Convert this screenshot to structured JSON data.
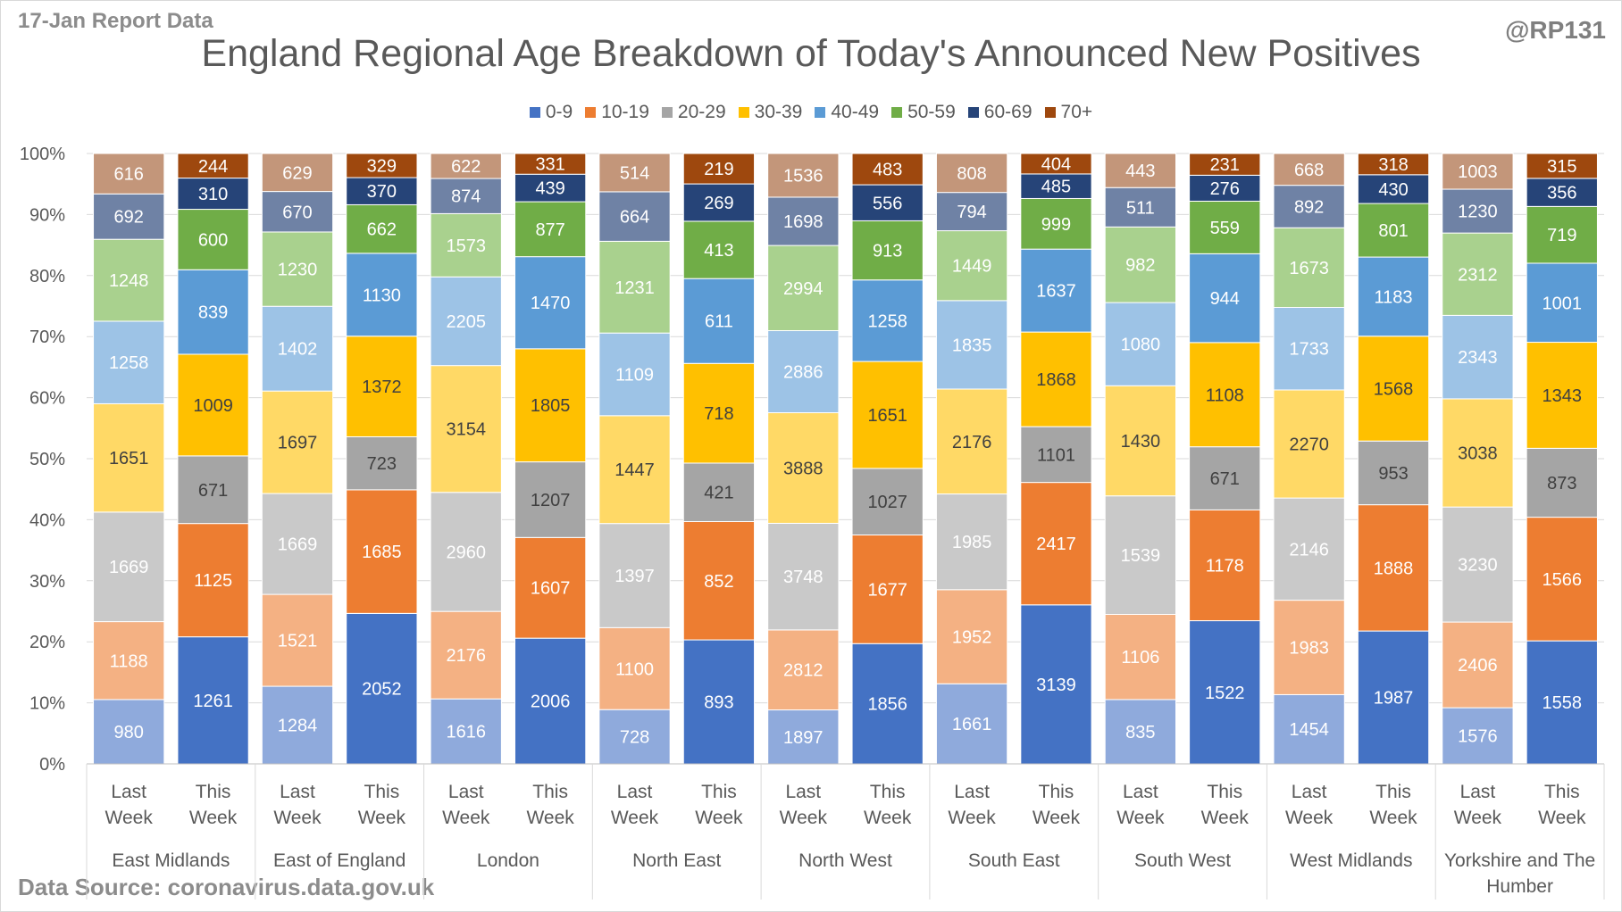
{
  "header": {
    "report_label": "17-Jan Report Data",
    "handle": "@RP131",
    "source": "Data Source: coronavirus.data.gov.uk"
  },
  "chart_data": {
    "type": "bar",
    "stacked": true,
    "percent_stacked": true,
    "title": "England Regional Age Breakdown of Today's Announced New Positives",
    "xlabel": "",
    "ylabel": "",
    "ylim": [
      0,
      100
    ],
    "y_ticks": [
      "0%",
      "10%",
      "20%",
      "30%",
      "40%",
      "50%",
      "60%",
      "70%",
      "80%",
      "90%",
      "100%"
    ],
    "grid": true,
    "legend_position": "top",
    "age_bands": [
      "0-9",
      "10-19",
      "20-29",
      "30-39",
      "40-49",
      "50-59",
      "60-69",
      "70+"
    ],
    "colors_this_week": [
      "#4472C4",
      "#ED7D31",
      "#A5A5A5",
      "#FFC000",
      "#5B9BD5",
      "#70AD47",
      "#264478",
      "#9E480E"
    ],
    "colors_last_week": [
      "#8FAADC",
      "#F4B183",
      "#C9C9C9",
      "#FFD966",
      "#9DC3E6",
      "#A9D18E",
      "#6F82A5",
      "#C3967A"
    ],
    "period_labels": [
      "Last Week",
      "This Week"
    ],
    "regions": [
      {
        "name": "East Midlands",
        "last_week": [
          980,
          1188,
          1669,
          1651,
          1258,
          1248,
          692,
          616
        ],
        "this_week": [
          1261,
          1125,
          671,
          1009,
          839,
          600,
          310,
          244
        ]
      },
      {
        "name": "East of England",
        "last_week": [
          1284,
          1521,
          1669,
          1697,
          1402,
          1230,
          670,
          629
        ],
        "this_week": [
          2052,
          1685,
          723,
          1372,
          1130,
          662,
          370,
          329
        ]
      },
      {
        "name": "London",
        "last_week": [
          1616,
          2176,
          2960,
          3154,
          2205,
          1573,
          874,
          622
        ],
        "this_week": [
          2006,
          1607,
          1207,
          1805,
          1470,
          877,
          439,
          331
        ]
      },
      {
        "name": "North East",
        "last_week": [
          728,
          1100,
          1397,
          1447,
          1109,
          1231,
          664,
          514
        ],
        "this_week": [
          893,
          852,
          421,
          718,
          611,
          413,
          269,
          219
        ]
      },
      {
        "name": "North West",
        "last_week": [
          1897,
          2812,
          3748,
          3888,
          2886,
          2994,
          1698,
          1536
        ],
        "this_week": [
          1856,
          1677,
          1027,
          1651,
          1258,
          913,
          556,
          483
        ]
      },
      {
        "name": "South East",
        "last_week": [
          1661,
          1952,
          1985,
          2176,
          1835,
          1449,
          794,
          808
        ],
        "this_week": [
          3139,
          2417,
          1101,
          1868,
          1637,
          999,
          485,
          404
        ]
      },
      {
        "name": "South West",
        "last_week": [
          835,
          1106,
          1539,
          1430,
          1080,
          982,
          511,
          443
        ],
        "this_week": [
          1522,
          1178,
          671,
          1108,
          944,
          559,
          276,
          231
        ]
      },
      {
        "name": "West Midlands",
        "last_week": [
          1454,
          1983,
          2146,
          2270,
          1733,
          1673,
          892,
          668
        ],
        "this_week": [
          1987,
          1888,
          953,
          1568,
          1183,
          801,
          430,
          318
        ]
      },
      {
        "name": "Yorkshire and The Humber",
        "last_week": [
          1576,
          2406,
          3230,
          3038,
          2343,
          2312,
          1230,
          1003
        ],
        "this_week": [
          1558,
          1566,
          873,
          1343,
          1001,
          719,
          356,
          315
        ]
      }
    ]
  }
}
